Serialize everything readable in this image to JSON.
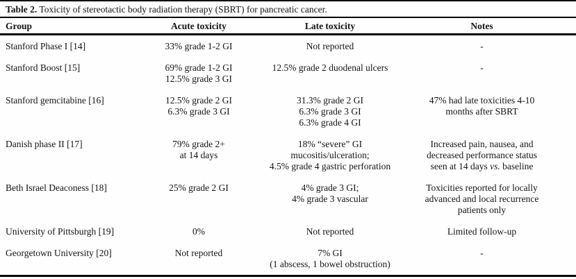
{
  "caption": {
    "label": "Table 2.",
    "text": " Toxicity of stereotactic body radiation therapy (SBRT) for pancreatic cancer."
  },
  "table": {
    "headers": [
      "Group",
      "Acute toxicity",
      "Late toxicity",
      "Notes"
    ],
    "rows": [
      {
        "group": "Stanford Phase I [14]",
        "acute": [
          "33% grade 1-2 GI"
        ],
        "late": [
          "Not reported"
        ],
        "notes": [
          "-"
        ]
      },
      {
        "group": "Stanford Boost [15]",
        "acute": [
          "69% grade 1-2 GI",
          "12.5% grade 3 GI"
        ],
        "late": [
          "12.5% grade 2 duodenal ulcers"
        ],
        "notes": [
          "-"
        ]
      },
      {
        "group": "Stanford gemcitabine [16]",
        "acute": [
          "12.5% grade 2 GI",
          "6.3% grade 3 GI"
        ],
        "late": [
          "31.3% grade 2 GI",
          "6.3% grade 3 GI",
          "6.3% grade 4 GI"
        ],
        "notes": [
          "47% had late toxicities 4-10",
          "months after SBRT"
        ]
      },
      {
        "group": "Danish phase II [17]",
        "acute": [
          "79% grade 2+",
          "at 14 days"
        ],
        "late": [
          "18% “severe” GI",
          "mucositis/ulceration;",
          "4.5% grade 4 gastric perforation"
        ],
        "notes": [
          "Increased pain, nausea, and",
          "decreased performance status"
        ],
        "notes_tail": {
          "pre": "seen at 14 days ",
          "italic": "vs.",
          "post": " baseline"
        }
      },
      {
        "group": "Beth Israel Deaconess [18]",
        "acute": [
          "25% grade 2 GI"
        ],
        "late": [
          "4% grade 3 GI;",
          "4% grade 3 vascular"
        ],
        "notes": [
          "Toxicities reported for locally",
          "advanced and local recurrence",
          "patients only"
        ]
      },
      {
        "group": "University of Pittsburgh [19]",
        "acute": [
          "0%"
        ],
        "late": [
          "Not reported"
        ],
        "notes": [
          "Limited follow-up"
        ]
      },
      {
        "group": "Georgetown University [20]",
        "acute": [
          "Not reported"
        ],
        "late": [
          "7% GI",
          "(1 abscess, 1 bowel obstruction)"
        ],
        "notes": [
          "-"
        ]
      }
    ]
  }
}
